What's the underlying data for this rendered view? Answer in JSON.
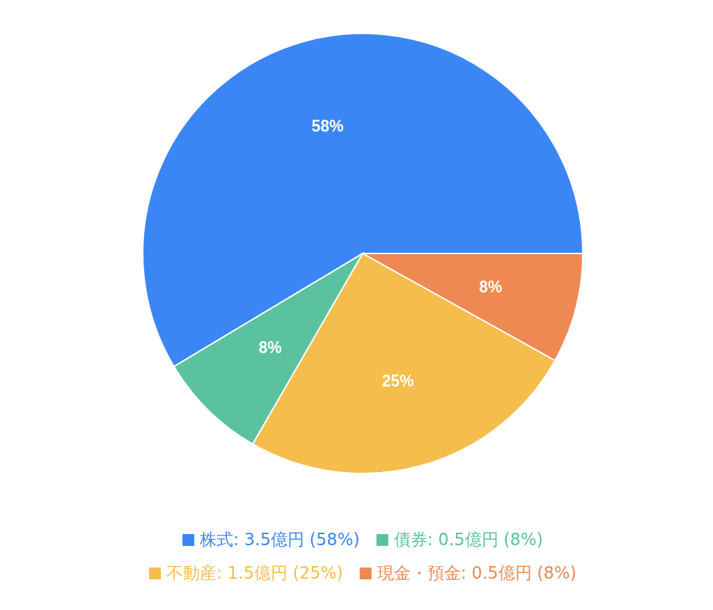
{
  "chart_data": {
    "type": "pie",
    "categories": [
      "株式: 3.5億円 (58%)",
      "債券: 0.5億円 (8%)",
      "不動産: 1.5億円 (25%)",
      "現金・預金: 0.5億円 (8%)"
    ],
    "values": [
      58,
      8,
      25,
      8
    ],
    "colors": [
      "#3b86f5",
      "#5bc2a0",
      "#f4bd4c",
      "#ee8953"
    ],
    "value_labels": [
      "58%",
      "8%",
      "25%",
      "8%"
    ],
    "legend": "bottom"
  }
}
